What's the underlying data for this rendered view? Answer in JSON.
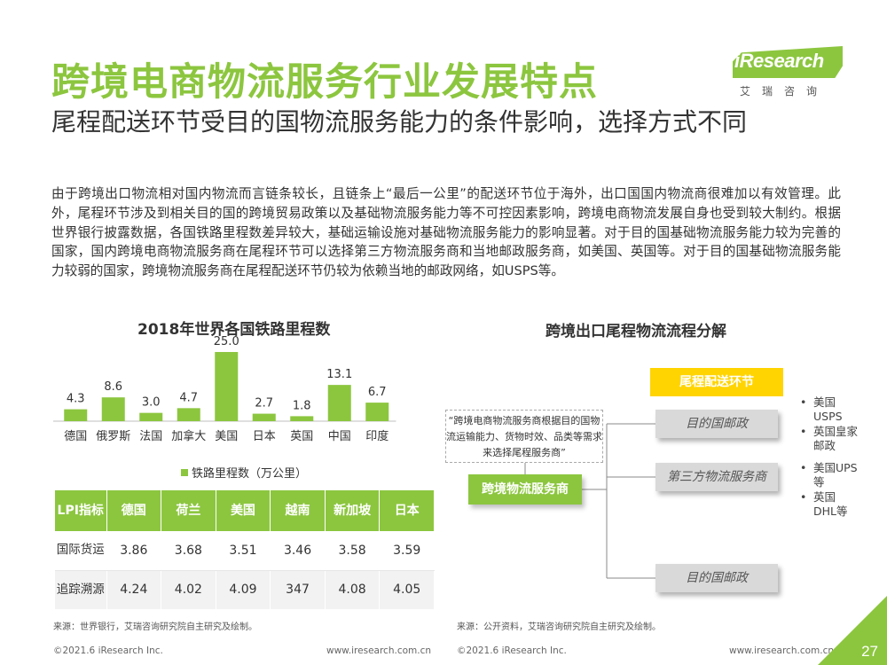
{
  "header": {
    "title": "跨境电商物流服务行业发展特点",
    "subtitle": "尾程配送环节受目的国物流服务能力的条件影响，选择方式不同",
    "logo_text": "iResearch",
    "logo_cn": "艾瑞咨询"
  },
  "body_text": "由于跨境出口物流相对国内物流而言链条较长，且链条上“最后一公里”的配送环节位于海外，出口国国内物流商很难加以有效管理。此外，尾程环节涉及到相关目的国的跨境贸易政策以及基础物流服务能力等不可控因素影响，跨境电商物流发展自身也受到较大制约。根据世界银行披露数据，各国铁路里程数差异较大，基础运输设施对基础物流服务能力的影响显著。对于目的国基础物流服务能力较为完善的国家，国内跨境电商物流服务商在尾程环节可以选择第三方物流服务商和当地邮政服务商，如美国、英国等。对于目的国基础物流服务能力较弱的国家，跨境物流服务商在尾程配送环节仍较为依赖当地的邮政网络，如USPS等。",
  "chart_data": {
    "type": "bar",
    "title": "2018年世界各国铁路里程数",
    "categories": [
      "德国",
      "俄罗斯",
      "法国",
      "加拿大",
      "美国",
      "日本",
      "英国",
      "中国",
      "印度"
    ],
    "series": [
      {
        "name": "铁路里程数（万公里）",
        "values": [
          4.3,
          8.6,
          3.0,
          4.7,
          25.0,
          2.7,
          1.8,
          13.1,
          6.7
        ]
      }
    ],
    "value_labels": [
      "4.3",
      "8.6",
      "3.0",
      "4.7",
      "25.0",
      "2.7",
      "1.8",
      "13.1",
      "6.7"
    ],
    "ylim": [
      0,
      25
    ],
    "color": "#8cc63f",
    "grid": false,
    "legend_position": "bottom"
  },
  "lpi_table": {
    "headers": [
      "LPI指标",
      "德国",
      "荷兰",
      "美国",
      "越南",
      "新加坡",
      "日本"
    ],
    "rows": [
      {
        "label": "国际货运",
        "values": [
          "3.86",
          "3.68",
          "3.51",
          "3.46",
          "3.58",
          "3.59"
        ]
      },
      {
        "label": "追踪溯源",
        "values": [
          "4.24",
          "4.02",
          "4.09",
          "347",
          "4.08",
          "4.05"
        ]
      }
    ]
  },
  "source_left": "来源：世界银行，艾瑞咨询研究院自主研究及绘制。",
  "flow": {
    "title": "跨境出口尾程物流流程分解",
    "note": "“跨境电商物流服务商根据目的国物流运输能力、货物时效、品类等需求来选择尾程服务商”",
    "stage_label": "尾程配送环节",
    "origin": "跨境物流服务商",
    "targets": [
      "目的国邮政",
      "第三方物流服务商",
      "目的国邮政"
    ],
    "carriers": [
      {
        "bullet": "•",
        "text": "美国USPS"
      },
      {
        "bullet": "•",
        "text": "英国皇家邮政"
      },
      {
        "bullet": "•",
        "text": "美国UPS等"
      },
      {
        "bullet": "•",
        "text": "英国DHL等"
      }
    ]
  },
  "source_right": "来源：公开资料，艾瑞咨询研究院自主研究及绘制。",
  "footer": {
    "copyright_left": "©2021.6 iResearch Inc.",
    "site_left": "www.iresearch.com.cn",
    "copyright_right": "©2021.6 iResearch Inc.",
    "site_right": "www.iresearch.com.cn",
    "page": "27"
  }
}
